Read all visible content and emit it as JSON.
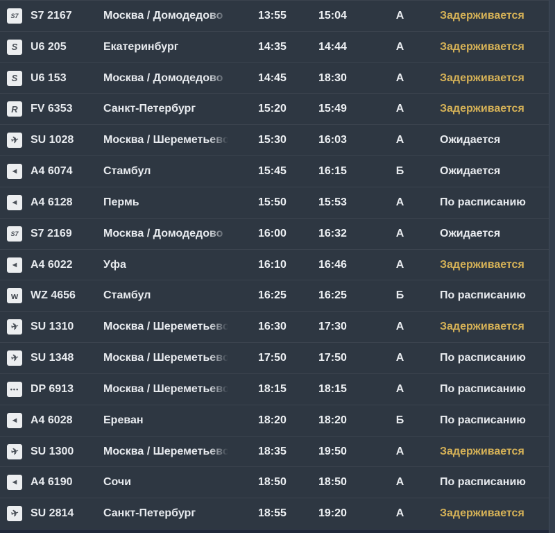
{
  "colors": {
    "row_background": "#2e3742",
    "separator": "#3b434e",
    "normal_status_text": "#e8ebef",
    "delayed_status_text": "#d6b257",
    "bottom_bar": "#20293a",
    "scrollbar_track": "#333d4b"
  },
  "table": {
    "icons": {
      "S7": {
        "name": "s7-airlines-logo-icon",
        "glyph": "S7"
      },
      "U6": {
        "name": "ural-airlines-logo-icon",
        "glyph": "S"
      },
      "FV": {
        "name": "rossiya-airlines-logo-icon",
        "glyph": "R"
      },
      "SU": {
        "name": "aeroflot-logo-icon",
        "glyph": "✈"
      },
      "A4": {
        "name": "azimuth-airlines-logo-icon",
        "glyph": "◄"
      },
      "WZ": {
        "name": "red-wings-logo-icon",
        "glyph": "w"
      },
      "DP": {
        "name": "pobeda-logo-icon",
        "glyph": "•••"
      }
    },
    "rows": [
      {
        "airline": "S7",
        "flight": "S7 2167",
        "destination": "Москва / Домодедово",
        "scheduled": "13:55",
        "estimated": "15:04",
        "terminal": "А",
        "status": "Задерживается",
        "status_type": "delayed"
      },
      {
        "airline": "U6",
        "flight": "U6 205",
        "destination": "Екатеринбург",
        "scheduled": "14:35",
        "estimated": "14:44",
        "terminal": "А",
        "status": "Задерживается",
        "status_type": "delayed"
      },
      {
        "airline": "U6",
        "flight": "U6 153",
        "destination": "Москва / Домодедово",
        "scheduled": "14:45",
        "estimated": "18:30",
        "terminal": "А",
        "status": "Задерживается",
        "status_type": "delayed"
      },
      {
        "airline": "FV",
        "flight": "FV 6353",
        "destination": "Санкт-Петербург",
        "scheduled": "15:20",
        "estimated": "15:49",
        "terminal": "А",
        "status": "Задерживается",
        "status_type": "delayed"
      },
      {
        "airline": "SU",
        "flight": "SU 1028",
        "destination": "Москва / Шереметьево",
        "scheduled": "15:30",
        "estimated": "16:03",
        "terminal": "А",
        "status": "Ожидается",
        "status_type": "normal"
      },
      {
        "airline": "A4",
        "flight": "A4 6074",
        "destination": "Стамбул",
        "scheduled": "15:45",
        "estimated": "16:15",
        "terminal": "Б",
        "status": "Ожидается",
        "status_type": "normal"
      },
      {
        "airline": "A4",
        "flight": "A4 6128",
        "destination": "Пермь",
        "scheduled": "15:50",
        "estimated": "15:53",
        "terminal": "А",
        "status": "По расписанию",
        "status_type": "normal"
      },
      {
        "airline": "S7",
        "flight": "S7 2169",
        "destination": "Москва / Домодедово",
        "scheduled": "16:00",
        "estimated": "16:32",
        "terminal": "А",
        "status": "Ожидается",
        "status_type": "normal"
      },
      {
        "airline": "A4",
        "flight": "A4 6022",
        "destination": "Уфа",
        "scheduled": "16:10",
        "estimated": "16:46",
        "terminal": "А",
        "status": "Задерживается",
        "status_type": "delayed"
      },
      {
        "airline": "WZ",
        "flight": "WZ 4656",
        "destination": "Стамбул",
        "scheduled": "16:25",
        "estimated": "16:25",
        "terminal": "Б",
        "status": "По расписанию",
        "status_type": "normal"
      },
      {
        "airline": "SU",
        "flight": "SU 1310",
        "destination": "Москва / Шереметьево",
        "scheduled": "16:30",
        "estimated": "17:30",
        "terminal": "А",
        "status": "Задерживается",
        "status_type": "delayed"
      },
      {
        "airline": "SU",
        "flight": "SU 1348",
        "destination": "Москва / Шереметьево",
        "scheduled": "17:50",
        "estimated": "17:50",
        "terminal": "А",
        "status": "По расписанию",
        "status_type": "normal"
      },
      {
        "airline": "DP",
        "flight": "DP 6913",
        "destination": "Москва / Шереметьево",
        "scheduled": "18:15",
        "estimated": "18:15",
        "terminal": "А",
        "status": "По расписанию",
        "status_type": "normal"
      },
      {
        "airline": "A4",
        "flight": "A4 6028",
        "destination": "Ереван",
        "scheduled": "18:20",
        "estimated": "18:20",
        "terminal": "Б",
        "status": "По расписанию",
        "status_type": "normal"
      },
      {
        "airline": "SU",
        "flight": "SU 1300",
        "destination": "Москва / Шереметьево",
        "scheduled": "18:35",
        "estimated": "19:50",
        "terminal": "А",
        "status": "Задерживается",
        "status_type": "delayed"
      },
      {
        "airline": "A4",
        "flight": "A4 6190",
        "destination": "Сочи",
        "scheduled": "18:50",
        "estimated": "18:50",
        "terminal": "А",
        "status": "По расписанию",
        "status_type": "normal"
      },
      {
        "airline": "SU",
        "flight": "SU 2814",
        "destination": "Санкт-Петербург",
        "scheduled": "18:55",
        "estimated": "19:20",
        "terminal": "А",
        "status": "Задерживается",
        "status_type": "delayed"
      }
    ]
  }
}
